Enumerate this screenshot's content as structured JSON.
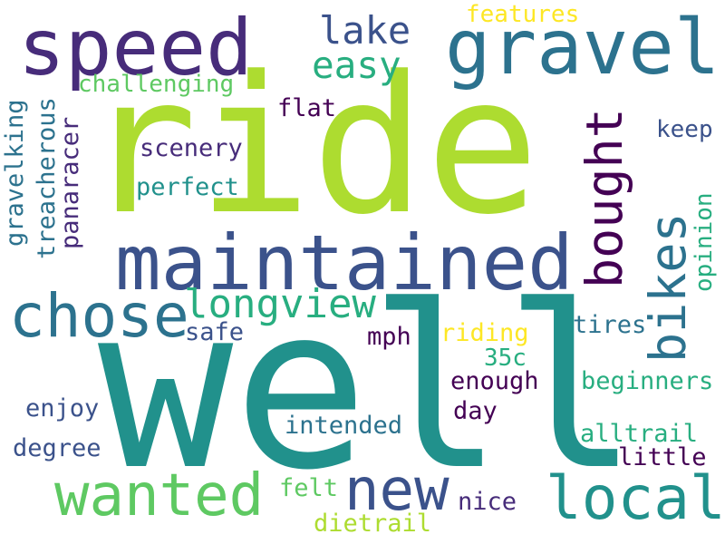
{
  "palette": {
    "dark_purple": "#440154",
    "purple": "#472c7a",
    "indigo": "#3b528b",
    "blue": "#2c728e",
    "teal": "#21918c",
    "green_teal": "#28ae80",
    "green": "#5ec962",
    "lime": "#addc30",
    "yellow": "#fde725"
  },
  "words": {
    "ride": "ride",
    "well": "well",
    "speed": "speed",
    "gravel": "gravel",
    "maintained": "maintained",
    "bought": "bought",
    "bikes": "bikes",
    "chose": "chose",
    "longview": "longview",
    "wanted": "wanted",
    "new": "new",
    "local": "local",
    "lake": "lake",
    "easy": "easy",
    "features": "features",
    "challenging": "challenging",
    "flat": "flat",
    "keep": "keep",
    "scenery": "scenery",
    "perfect": "perfect",
    "gravelking": "gravelking",
    "treacherous": "treacherous",
    "panaracer": "panaracer",
    "opinion": "opinion",
    "safe": "safe",
    "mph": "mph",
    "riding": "riding",
    "tires": "tires",
    "c35": "35c",
    "enough": "enough",
    "beginners": "beginners",
    "enjoy": "enjoy",
    "day": "day",
    "intended": "intended",
    "degree": "degree",
    "alltrail": "alltrail",
    "little": "little",
    "felt": "felt",
    "nice": "nice",
    "dietrail": "dietrail"
  }
}
